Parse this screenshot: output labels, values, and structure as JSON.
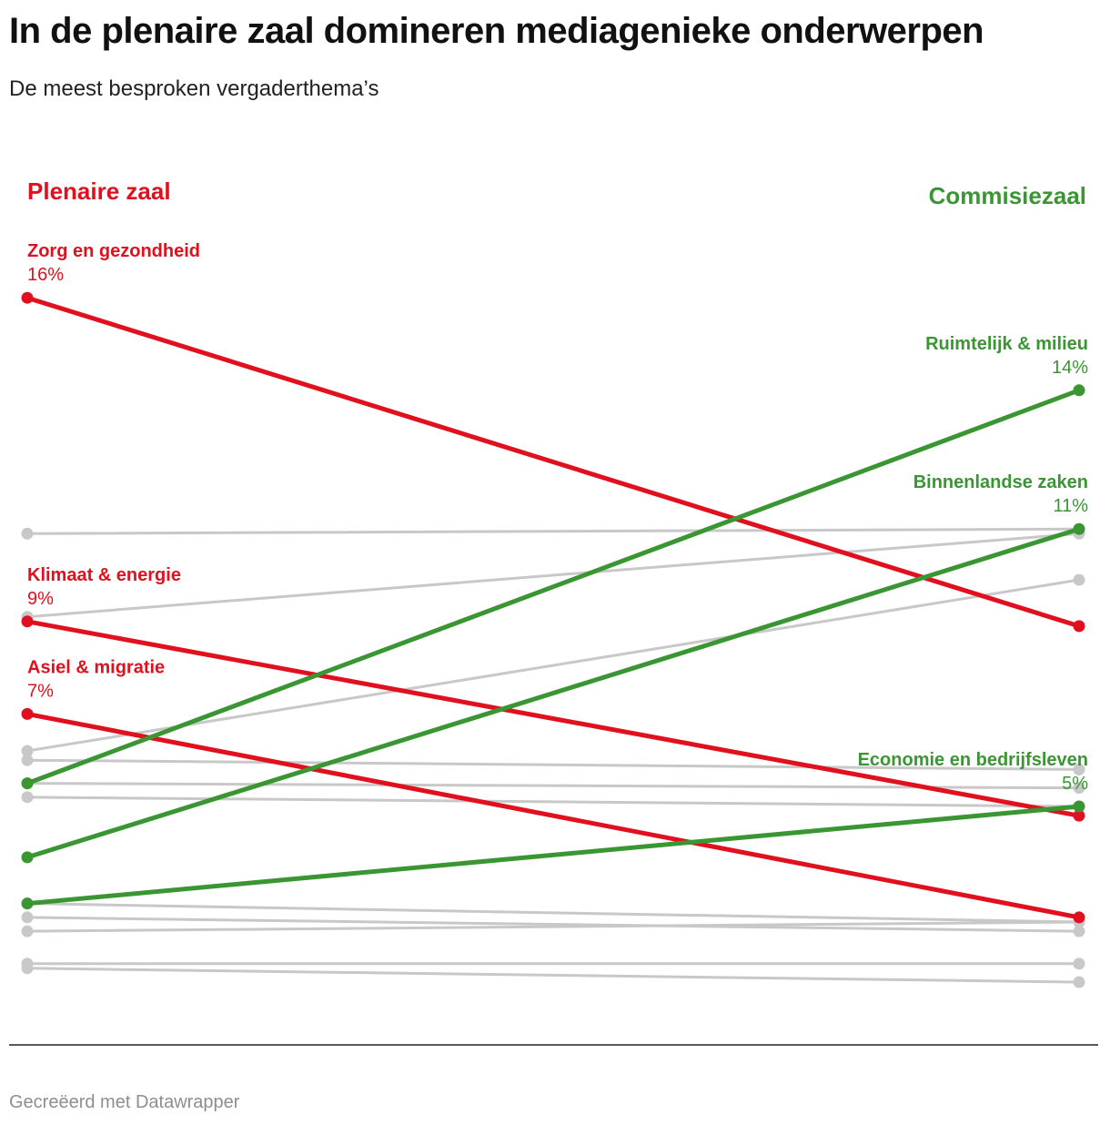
{
  "title": "In de plenaire zaal domineren mediagenieke onderwerpen",
  "subtitle": "De meest besproken vergaderthema’s",
  "footer": "Gecreëerd met Datawrapper",
  "colors": {
    "red": "#e0101f",
    "green": "#3a9632",
    "grey": "#c8c8c8"
  },
  "chart_data": {
    "type": "slope",
    "columns": [
      "Plenaire zaal",
      "Commisiezaal"
    ],
    "series": [
      {
        "name": "Zorg en gezondheid",
        "values": [
          16,
          8.9
        ],
        "color": "red",
        "label_side": "left",
        "label_value": "16%"
      },
      {
        "name": "Klimaat & energie",
        "values": [
          9,
          4.8
        ],
        "color": "red",
        "label_side": "left",
        "label_value": "9%"
      },
      {
        "name": "Asiel & migratie",
        "values": [
          7,
          2.6
        ],
        "color": "red",
        "label_side": "left",
        "label_value": "7%"
      },
      {
        "name": "Ruimtelijk & milieu",
        "values": [
          5.5,
          14
        ],
        "color": "green",
        "label_side": "right",
        "label_value": "14%"
      },
      {
        "name": "Binnenlandse zaken",
        "values": [
          3.9,
          11
        ],
        "color": "green",
        "label_side": "right",
        "label_value": "11%"
      },
      {
        "name": "Economie en bedrijfsleven",
        "values": [
          2.9,
          5
        ],
        "color": "green",
        "label_side": "right",
        "label_value": "5%"
      },
      {
        "values": [
          10.9,
          11
        ],
        "color": "grey"
      },
      {
        "values": [
          9.1,
          10.9
        ],
        "color": "grey"
      },
      {
        "values": [
          6.2,
          9.9
        ],
        "color": "grey"
      },
      {
        "values": [
          6.0,
          5.8
        ],
        "color": "grey"
      },
      {
        "values": [
          5.5,
          5.4
        ],
        "color": "grey"
      },
      {
        "values": [
          5.2,
          5.0
        ],
        "color": "grey"
      },
      {
        "values": [
          2.9,
          2.5
        ],
        "color": "grey"
      },
      {
        "values": [
          2.6,
          2.3
        ],
        "color": "grey"
      },
      {
        "values": [
          2.3,
          2.5
        ],
        "color": "grey"
      },
      {
        "values": [
          1.6,
          1.6
        ],
        "color": "grey"
      },
      {
        "values": [
          1.5,
          1.2
        ],
        "color": "grey"
      }
    ]
  }
}
